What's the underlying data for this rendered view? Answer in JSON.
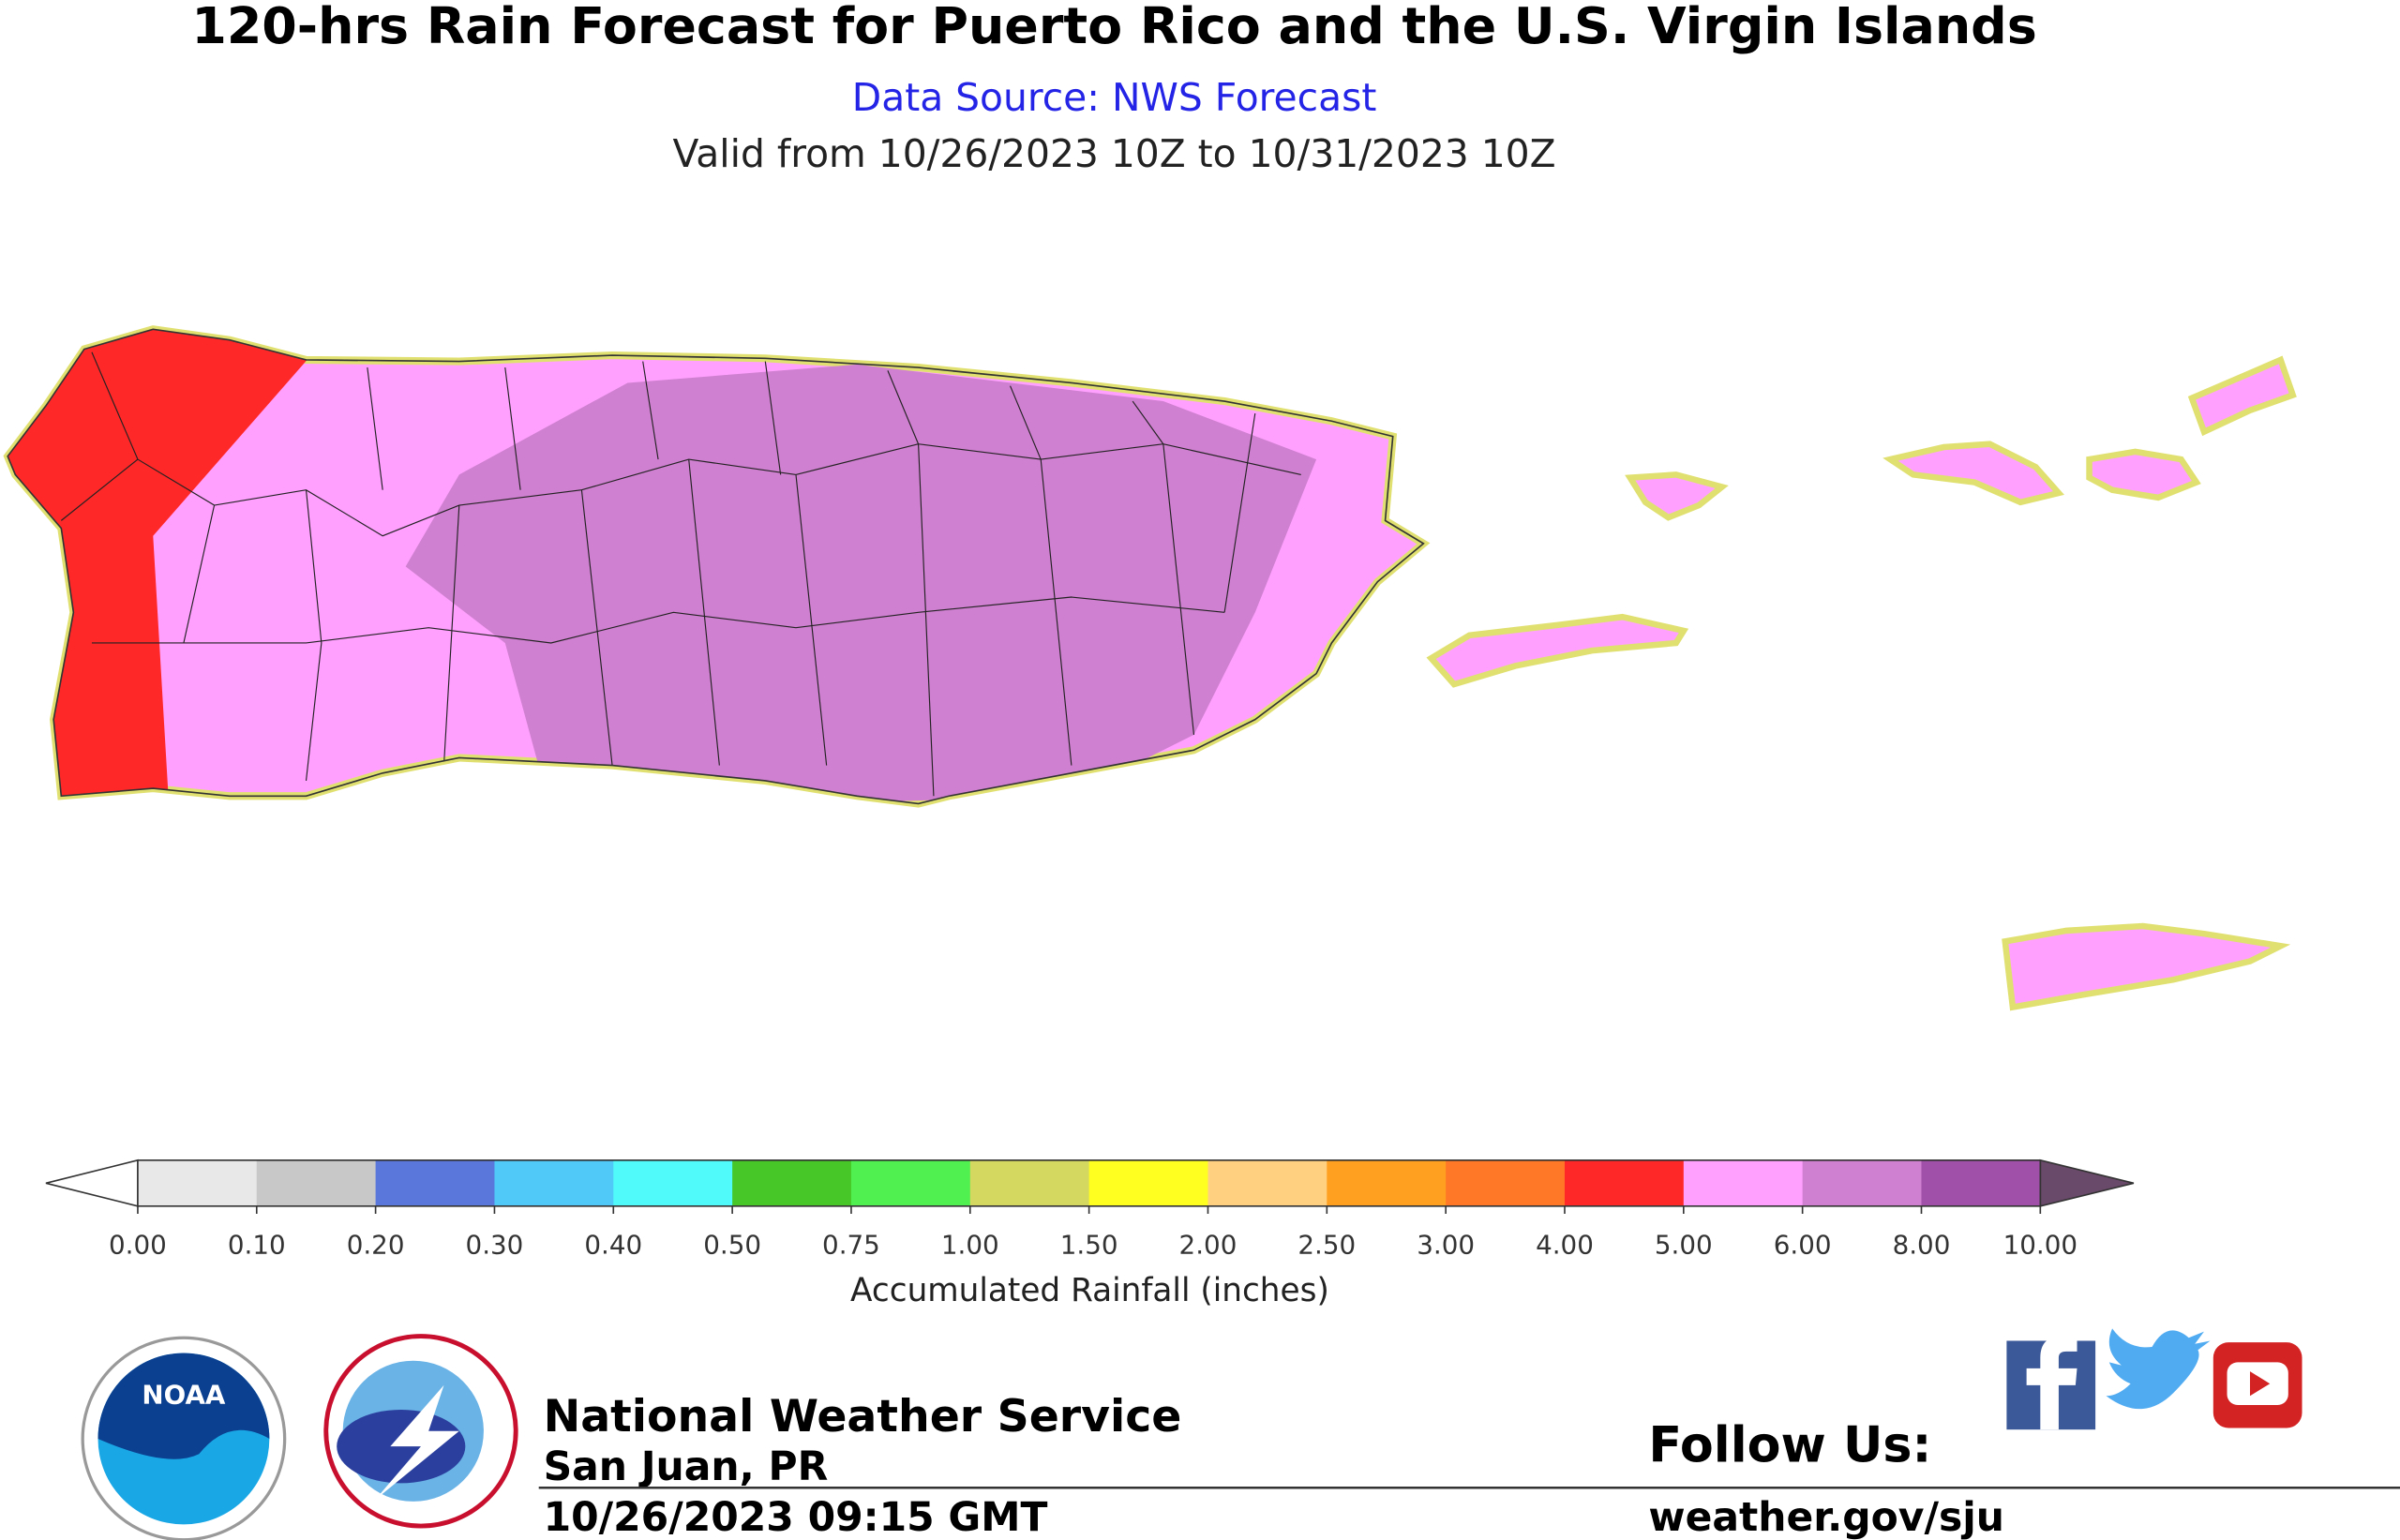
{
  "header": {
    "title": "120-hrs Rain Forecast for Puerto Rico and the U.S. Virgin Islands",
    "source": "Data Source: NWS Forecast",
    "valid": "Valid from 10/26/2023 10Z to 10/31/2023 10Z"
  },
  "colorbar": {
    "label": "Accumulated Rainfall (inches)",
    "ticks": [
      {
        "value": 0,
        "label": "0.00"
      },
      {
        "value": 0.1,
        "label": "0.10"
      },
      {
        "value": 0.2,
        "label": "0.20"
      },
      {
        "value": 0.3,
        "label": "0.30"
      },
      {
        "value": 0.4,
        "label": "0.40"
      },
      {
        "value": 0.5,
        "label": "0.50"
      },
      {
        "value": 0.75,
        "label": "0.75"
      },
      {
        "value": 1,
        "label": "1.00"
      },
      {
        "value": 1.5,
        "label": "1.50"
      },
      {
        "value": 2,
        "label": "2.00"
      },
      {
        "value": 2.5,
        "label": "2.50"
      },
      {
        "value": 3,
        "label": "3.00"
      },
      {
        "value": 4,
        "label": "4.00"
      },
      {
        "value": 5,
        "label": "5.00"
      },
      {
        "value": 6,
        "label": "6.00"
      },
      {
        "value": 8,
        "label": "8.00"
      },
      {
        "value": 10,
        "label": "10.00"
      }
    ],
    "colors": [
      "#e8e8e8",
      "#c8c8c8",
      "#5a78dc",
      "#50c8f8",
      "#50fafa",
      "#48c828",
      "#50f050",
      "#d4d860",
      "#ffff20",
      "#ffd080",
      "#ffa020",
      "#ff7828",
      "#ff2828",
      "#ffa0ff",
      "#d080d0",
      "#a050a8"
    ],
    "under_color": "#ffffff",
    "over_color": "#6a4a6a"
  },
  "footer": {
    "noaa": "NOAA",
    "office": "National Weather Service",
    "location": "San Juan, PR",
    "issued": "10/26/2023 09:15 GMT",
    "follow": "Follow Us:",
    "url": "weather.gov/sju"
  }
}
